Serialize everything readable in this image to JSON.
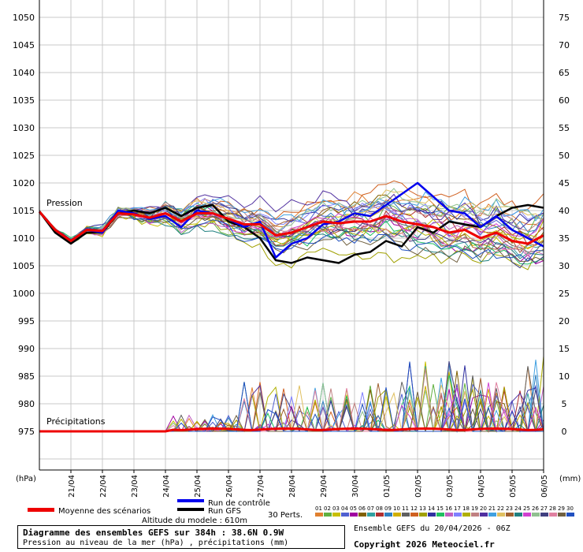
{
  "chart_data": {
    "type": "line",
    "left_axis_unit": "(hPa)",
    "right_axis_unit": "(mm)",
    "left_ticks": [
      1050,
      1045,
      1040,
      1035,
      1030,
      1025,
      1020,
      1015,
      1010,
      1005,
      1000,
      995,
      990,
      985,
      980,
      975
    ],
    "right_ticks": [
      75,
      70,
      65,
      60,
      55,
      50,
      45,
      40,
      35,
      30,
      25,
      20,
      15,
      10,
      5,
      0
    ],
    "left_range": [
      975,
      1050
    ],
    "right_range": [
      0,
      75
    ],
    "dates": [
      "21/04",
      "22/04",
      "23/04",
      "24/04",
      "25/04",
      "26/04",
      "27/04",
      "28/04",
      "29/04",
      "30/04",
      "01/05",
      "02/05",
      "03/05",
      "04/05",
      "05/05",
      "06/05"
    ],
    "x_range_hours": [
      0,
      384
    ],
    "grid": true,
    "labels": {
      "pressure": "Pression",
      "precipitation": "Précipitations"
    },
    "legend": {
      "control_run": "Run de contrôle",
      "mean": "Moyenne des scénarios",
      "gfs_run": "Run GFS",
      "perturbations": "30 Perts.",
      "model_altitude": "Altitude du modele : 610m",
      "perturbation_numbers": [
        "01",
        "02",
        "03",
        "04",
        "05",
        "06",
        "07",
        "08",
        "09",
        "10",
        "11",
        "12",
        "13",
        "14",
        "15",
        "16",
        "17",
        "18",
        "19",
        "20",
        "21",
        "22",
        "23",
        "24",
        "25",
        "26",
        "27",
        "28",
        "29",
        "30"
      ]
    },
    "colors": {
      "control_run": "#0000ee",
      "mean": "#ee0000",
      "gfs_run": "#000000",
      "perturbations": [
        "#e08030",
        "#60b040",
        "#c8c000",
        "#5060d0",
        "#a000a0",
        "#806000",
        "#30a0a0",
        "#b03030",
        "#3080c0",
        "#d0b000",
        "#606060",
        "#d06020",
        "#a0a000",
        "#3030a0",
        "#20c060",
        "#c060c0",
        "#8080ff",
        "#b0b000",
        "#c08080",
        "#5030a0",
        "#40a0e0",
        "#e0c060",
        "#a06030",
        "#208080",
        "#d040d0",
        "#90c090",
        "#404080",
        "#e080a0",
        "#706040",
        "#2050c0"
      ]
    },
    "series": [
      {
        "name": "Run de contrôle",
        "x": [
          0,
          12,
          24,
          36,
          48,
          60,
          72,
          84,
          96,
          108,
          120,
          132,
          144,
          156,
          168,
          180,
          192,
          204,
          216,
          228,
          240,
          252,
          264,
          276,
          288,
          300,
          312,
          324,
          336,
          348,
          360,
          372,
          384
        ],
        "y": [
          1014.8,
          1011.5,
          1009.5,
          1011.5,
          1011,
          1015,
          1014.5,
          1013.5,
          1014,
          1012,
          1015,
          1014.5,
          1013.5,
          1012,
          1013,
          1006.5,
          1009,
          1010,
          1012.5,
          1013,
          1014.5,
          1014,
          1016,
          1018,
          1020,
          1017.5,
          1015,
          1014.5,
          1012,
          1014,
          1011.5,
          1010,
          1008.5
        ]
      },
      {
        "name": "Run GFS",
        "x": [
          0,
          12,
          24,
          36,
          48,
          60,
          72,
          84,
          96,
          108,
          120,
          132,
          144,
          156,
          168,
          180,
          192,
          204,
          216,
          228,
          240,
          252,
          264,
          276,
          288,
          300,
          312,
          324,
          336,
          348,
          360,
          372,
          384
        ],
        "y": [
          1014.8,
          1011,
          1009,
          1011,
          1011,
          1014.5,
          1015,
          1014.5,
          1015.5,
          1014,
          1015.5,
          1016,
          1013,
          1012,
          1010,
          1006,
          1005.5,
          1006.5,
          1006,
          1005.5,
          1007,
          1007.5,
          1009.5,
          1008.5,
          1012,
          1011,
          1013,
          1012.5,
          1012,
          1014,
          1015.5,
          1016,
          1015.5
        ]
      },
      {
        "name": "Moyenne des scénarios",
        "x": [
          0,
          12,
          24,
          36,
          48,
          60,
          72,
          84,
          96,
          108,
          120,
          132,
          144,
          156,
          168,
          180,
          192,
          204,
          216,
          228,
          240,
          252,
          264,
          276,
          288,
          300,
          312,
          324,
          336,
          348,
          360,
          372,
          384
        ],
        "y": [
          1014.8,
          1011.5,
          1009.5,
          1011.5,
          1011.3,
          1014.5,
          1014.3,
          1013.7,
          1014.5,
          1013,
          1014.5,
          1014.5,
          1013.5,
          1012.5,
          1012.5,
          1010.5,
          1011,
          1012,
          1013,
          1012.7,
          1013,
          1013,
          1014,
          1013,
          1012.5,
          1012,
          1011,
          1011.5,
          1010,
          1011,
          1009.5,
          1009,
          1010.5
        ]
      }
    ]
  },
  "footer": {
    "title": "Diagramme des ensembles GEFS sur 384h : 38.6N 0.9W",
    "subtitle": "Pression au niveau de la mer (hPa) , précipitations (mm)",
    "run_info": "Ensemble GEFS du 20/04/2026 - 06Z",
    "copyright": "Copyright 2026 Meteociel.fr"
  }
}
